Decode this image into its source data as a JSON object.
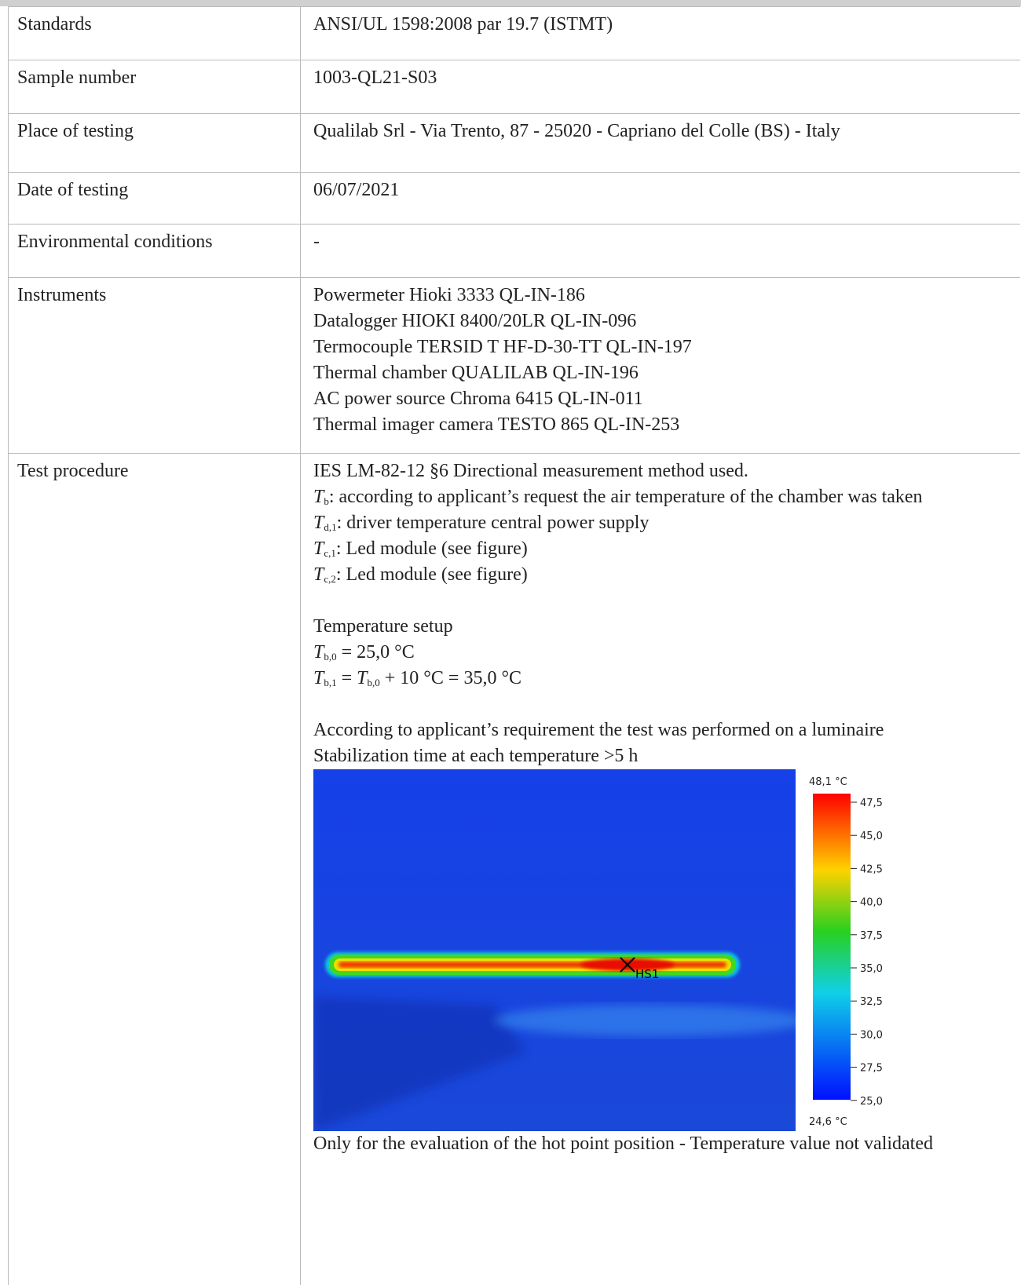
{
  "table": {
    "rows": [
      {
        "label": "Standards",
        "value": "ANSI/UL 1598:2008 par 19.7 (ISTMT)"
      },
      {
        "label": "Sample number",
        "value": "1003-QL21-S03"
      },
      {
        "label": "Place of testing",
        "value": "Qualilab Srl - Via Trento, 87 - 25020 - Capriano del Colle (BS) - Italy"
      },
      {
        "label": "Date of testing",
        "value": "06/07/2021"
      },
      {
        "label": "Environmental conditions",
        "value": "-"
      },
      {
        "label": "Instruments",
        "lines": [
          "Powermeter Hioki 3333 QL-IN-186",
          "Datalogger HIOKI 8400/20LR QL-IN-096",
          "Termocouple TERSID T HF-D-30-TT QL-IN-197",
          "Thermal chamber QUALILAB QL-IN-196",
          "AC power source Chroma 6415 QL-IN-011",
          "Thermal imager camera TESTO 865 QL-IN-253"
        ]
      },
      {
        "label": "Test procedure",
        "paragraphs": [
          [
            [
              {
                "text": "IES LM-82-12 §6 Directional measurement method used."
              }
            ],
            [
              {
                "symbol": "T",
                "sub": "b"
              },
              {
                "text": ": according to applicant’s request the air temperature of the chamber was taken"
              }
            ],
            [
              {
                "symbol": "T",
                "sub": "d,1"
              },
              {
                "text": ": driver temperature central power supply"
              }
            ],
            [
              {
                "symbol": "T",
                "sub": "c,1"
              },
              {
                "text": ": Led module (see figure)"
              }
            ],
            [
              {
                "symbol": "T",
                "sub": "c,2"
              },
              {
                "text": ": Led module (see figure)"
              }
            ]
          ],
          [
            [
              {
                "text": "Temperature setup"
              }
            ],
            [
              {
                "symbol": "T",
                "sub": "b,0"
              },
              {
                "text": " = 25,0 °C"
              }
            ],
            [
              {
                "symbol": "T",
                "sub": "b,1"
              },
              {
                "text": " = "
              },
              {
                "symbol": "T",
                "sub": "b,0"
              },
              {
                "text": " + 10 °C = 35,0 °C"
              }
            ]
          ],
          [
            [
              {
                "text": "According to applicant’s requirement the test was performed on a luminaire"
              }
            ],
            [
              {
                "text": "Stabilization time at each temperature >5 h"
              }
            ]
          ]
        ],
        "thermal_image": {
          "max_label": "48,1 °C",
          "min_label": "24,6 °C",
          "scale_labels": [
            "47,5",
            "45,0",
            "42,5",
            "40,0",
            "37,5",
            "35,0",
            "32,5",
            "30,0",
            "27,5",
            "25,0"
          ],
          "marker": "HS1"
        },
        "caption": "Only for the evaluation of the hot point position - Temperature value not validated"
      }
    ]
  }
}
